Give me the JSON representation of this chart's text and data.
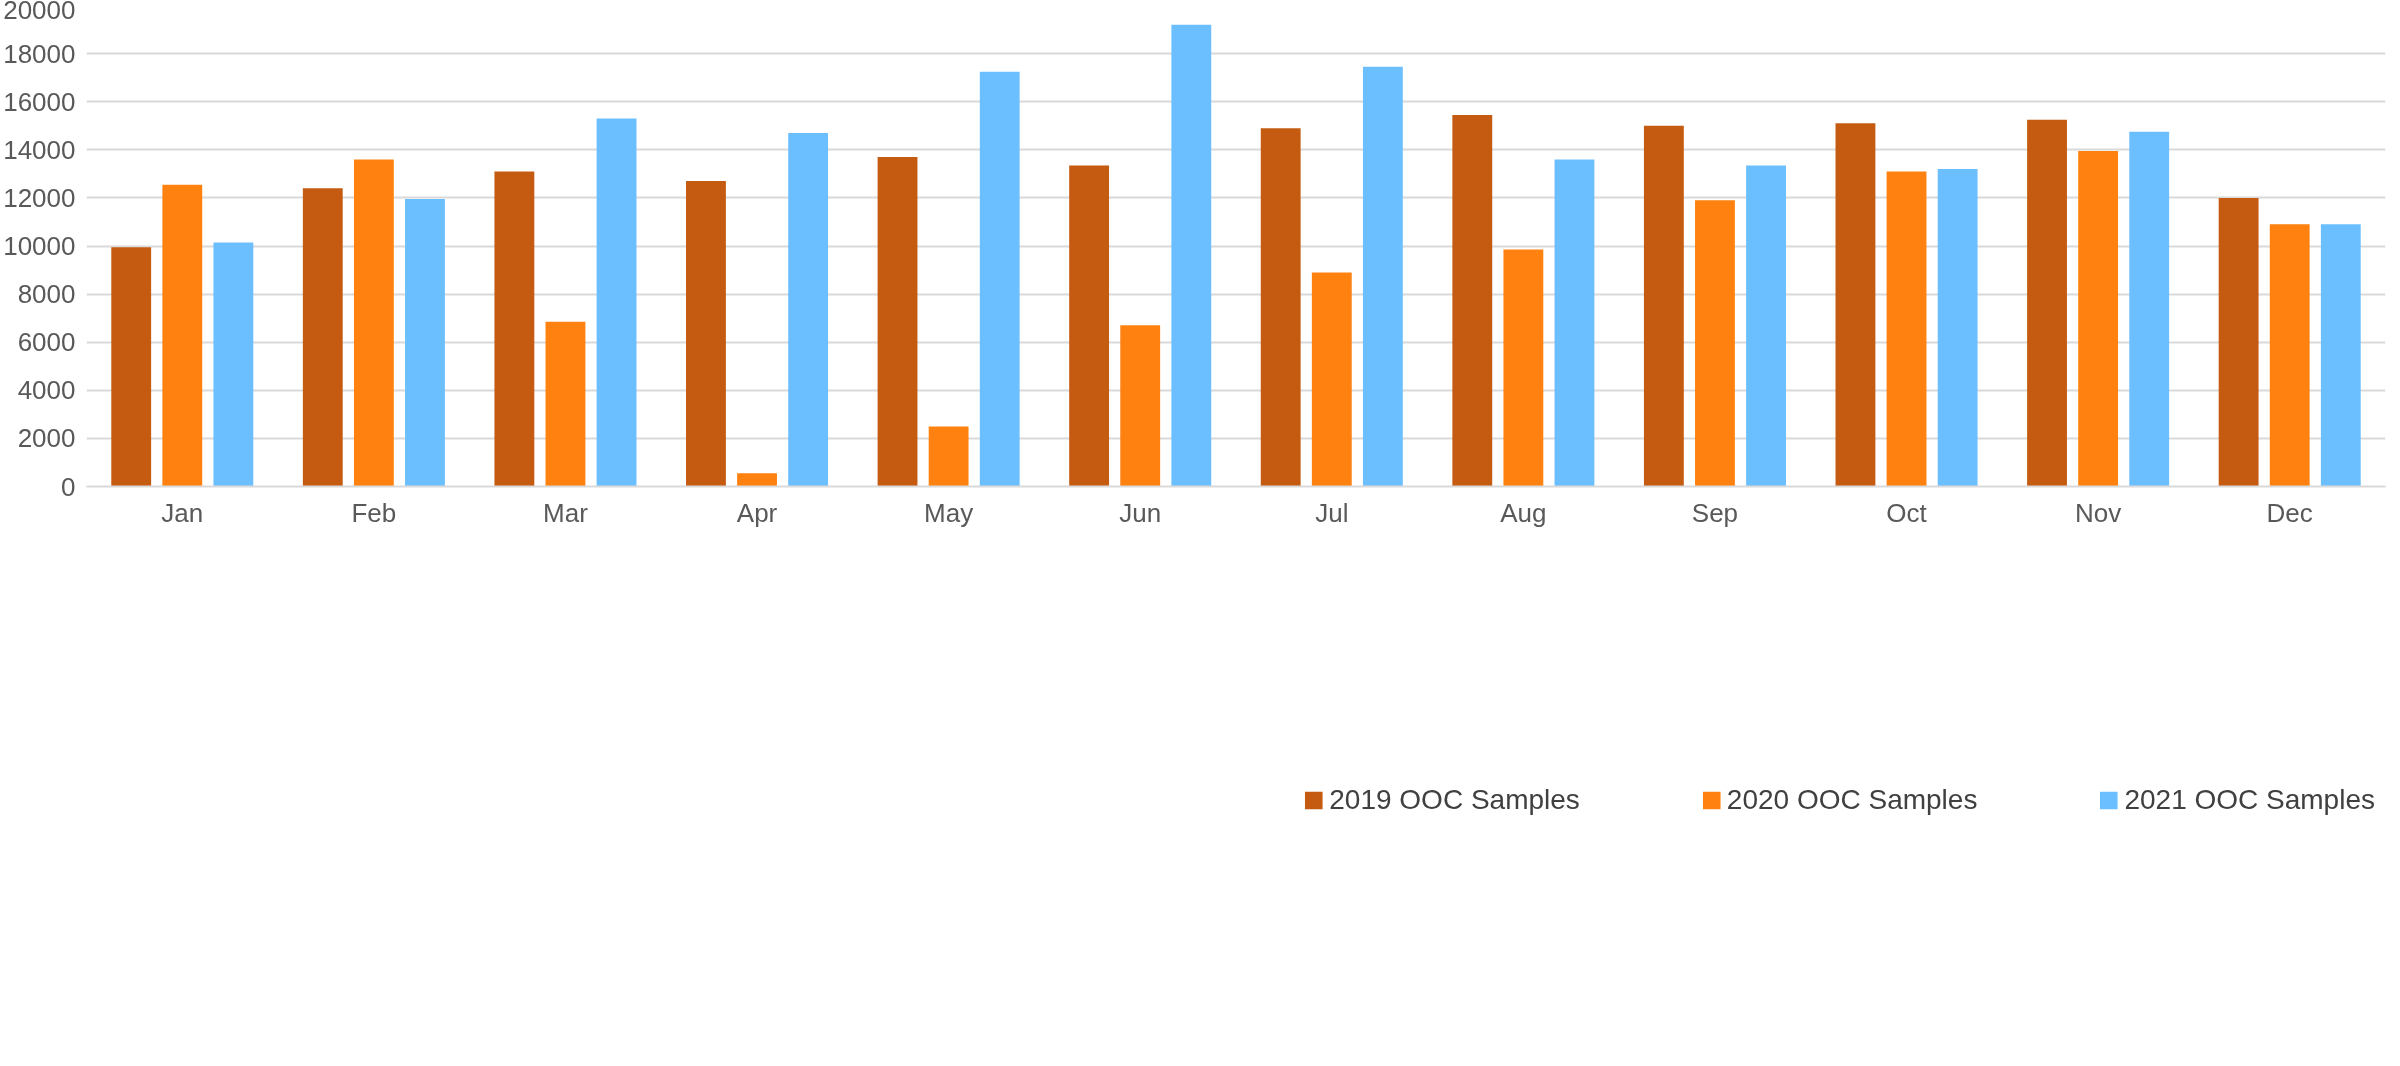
{
  "chart_data": {
    "type": "bar",
    "categories": [
      "Jan",
      "Feb",
      "Mar",
      "Apr",
      "May",
      "Jun",
      "Jul",
      "Aug",
      "Sep",
      "Oct",
      "Nov",
      "Dec"
    ],
    "series": [
      {
        "name": "2019 OOC Samples",
        "color": "#c55a11",
        "values": [
          9950,
          12400,
          13100,
          12700,
          13700,
          13350,
          14900,
          15450,
          15000,
          15100,
          15250,
          12000
        ]
      },
      {
        "name": "2020 OOC Samples",
        "color": "#ff8210",
        "values": [
          12550,
          13600,
          6850,
          550,
          2500,
          6700,
          8900,
          9850,
          11900,
          13100,
          13950,
          10900
        ]
      },
      {
        "name": "2021 OOC Samples",
        "color": "#6bbfff",
        "values": [
          10150,
          11950,
          15300,
          14700,
          17250,
          19200,
          17450,
          13600,
          13350,
          13200,
          14750,
          10900
        ]
      }
    ],
    "ylim": [
      0,
      20000
    ],
    "yticks": [
      0,
      2000,
      4000,
      6000,
      8000,
      10000,
      12000,
      14000,
      16000,
      18000,
      20000
    ],
    "grid": "y",
    "legend": "bottom"
  }
}
